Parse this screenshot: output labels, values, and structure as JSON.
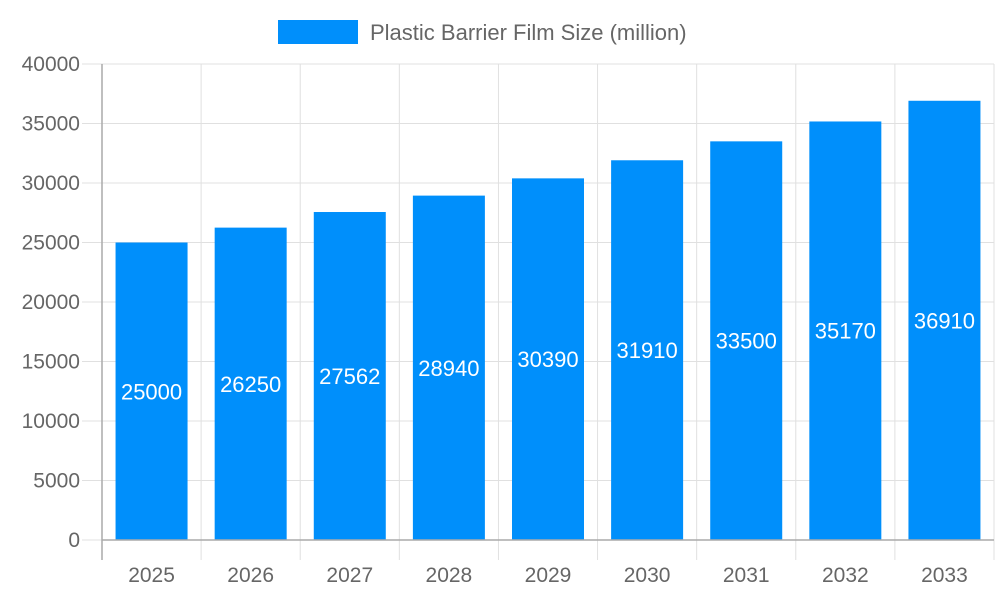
{
  "chart_data": {
    "type": "bar",
    "categories": [
      "2025",
      "2026",
      "2027",
      "2028",
      "2029",
      "2030",
      "2031",
      "2032",
      "2033"
    ],
    "series": [
      {
        "name": "Plastic Barrier Film Size (million)",
        "values": [
          25000,
          26250,
          27562,
          28940,
          30390,
          31910,
          33500,
          35170,
          36910
        ]
      }
    ],
    "yticks": [
      "0",
      "5000",
      "10000",
      "15000",
      "20000",
      "25000",
      "30000",
      "35000",
      "40000"
    ],
    "ylim": [
      0,
      40000
    ],
    "grid": true,
    "legend": "top",
    "data_labels": true,
    "colors": {
      "bar": "#008ffb",
      "text": "#666666",
      "grid": "#e0e0e0",
      "axis": "#aaaaaa",
      "label": "#ffffff"
    }
  }
}
